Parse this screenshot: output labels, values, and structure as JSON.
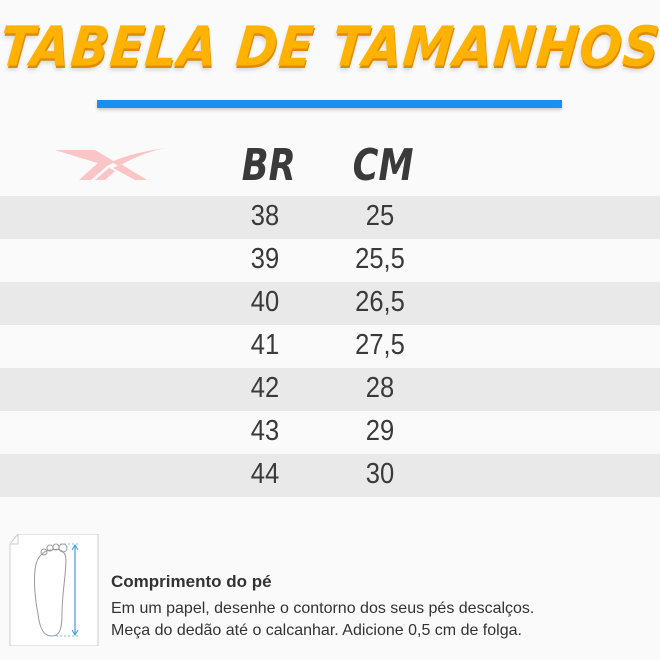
{
  "title": "TABELA DE TAMANHOS",
  "brand_logo": "reebok-logo",
  "colors": {
    "title": "#ffb300",
    "rule": "#1a8ff0",
    "logo": "#f9c5c5",
    "row_shade": "#e9e9e9"
  },
  "table": {
    "headers": [
      "BR",
      "CM"
    ],
    "rows": [
      [
        "38",
        "25"
      ],
      [
        "39",
        "25,5"
      ],
      [
        "40",
        "26,5"
      ],
      [
        "41",
        "27,5"
      ],
      [
        "42",
        "28"
      ],
      [
        "43",
        "29"
      ],
      [
        "44",
        "30"
      ]
    ]
  },
  "note": {
    "icon": "foot-measure-icon",
    "title": "Comprimento do pé",
    "lines": [
      "Em um papel, desenhe o contorno dos seus pés descalços.",
      "Meça do dedão até o calcanhar. Adicione 0,5 cm de folga."
    ]
  }
}
